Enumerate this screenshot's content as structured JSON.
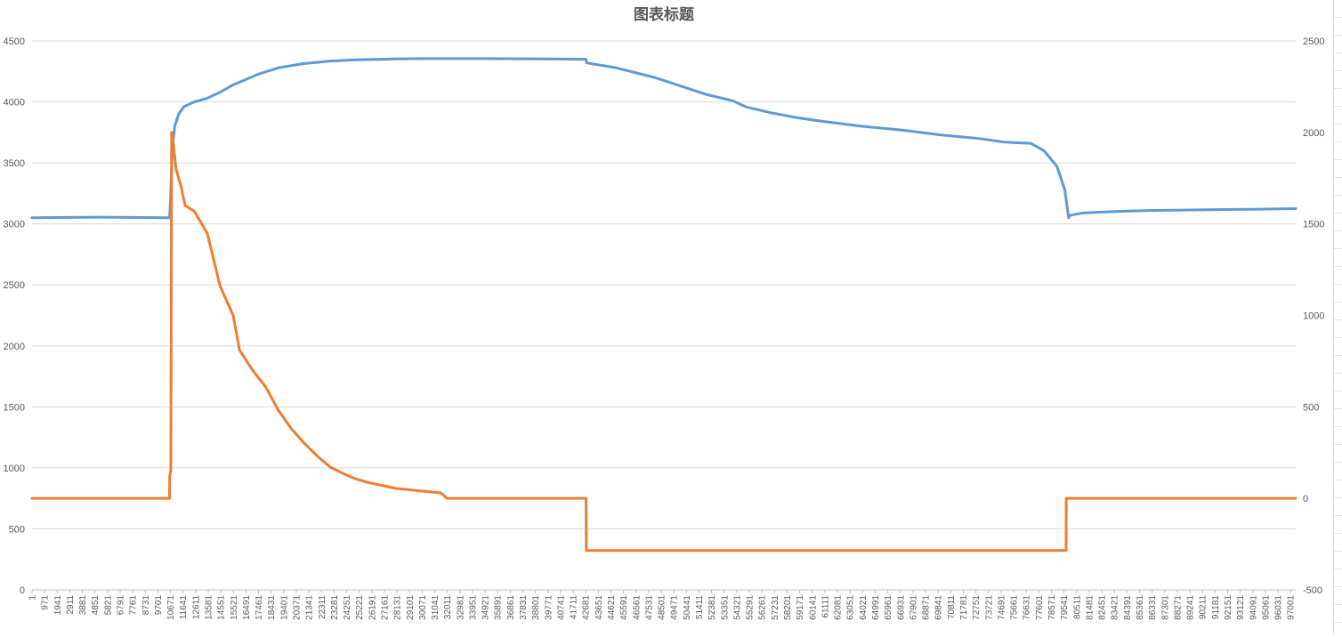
{
  "chart_data": {
    "type": "line",
    "title": "图表标题",
    "xlabel": "",
    "ylabel": "",
    "x_range": [
      1,
      97400
    ],
    "y_left_range": [
      0,
      4500
    ],
    "y_left_ticks": [
      "0",
      "500",
      "1000",
      "1500",
      "2000",
      "2500",
      "3000",
      "3500",
      "4000",
      "4500"
    ],
    "y_right_range": [
      -500,
      2500
    ],
    "y_right_ticks": [
      "-500",
      "0",
      "500",
      "1000",
      "1500",
      "2000",
      "2500"
    ],
    "x_tick_labels": [
      "1",
      "971",
      "1941",
      "2911",
      "3881",
      "4851",
      "5821",
      "6791",
      "7761",
      "8731",
      "9701",
      "10671",
      "11641",
      "12611",
      "13581",
      "14551",
      "15521",
      "16491",
      "17461",
      "18431",
      "19401",
      "20371",
      "21341",
      "22311",
      "23281",
      "24251",
      "25221",
      "26191",
      "27161",
      "28131",
      "29101",
      "30071",
      "31041",
      "32011",
      "32981",
      "33951",
      "34921",
      "35891",
      "36861",
      "37831",
      "38801",
      "39771",
      "40741",
      "41711",
      "42681",
      "43651",
      "44621",
      "45591",
      "46561",
      "47531",
      "48501",
      "49471",
      "50441",
      "51411",
      "52381",
      "53351",
      "54321",
      "55291",
      "56261",
      "57231",
      "58201",
      "59171",
      "60141",
      "61111",
      "62081",
      "63051",
      "64021",
      "64991",
      "65961",
      "66931",
      "67901",
      "68871",
      "69841",
      "70811",
      "71781",
      "72751",
      "73721",
      "74691",
      "75661",
      "76631",
      "77601",
      "78571",
      "79541",
      "80511",
      "81481",
      "82451",
      "83421",
      "84391",
      "85361",
      "86331",
      "87301",
      "88271",
      "89241",
      "90211",
      "91181",
      "92151",
      "93121",
      "94091",
      "95061",
      "96031",
      "97001"
    ],
    "grid": true,
    "legend": "none",
    "series": [
      {
        "axis": "left",
        "color": "#5b9bd5",
        "points": [
          [
            1,
            3050
          ],
          [
            5000,
            3055
          ],
          [
            10600,
            3050
          ],
          [
            10680,
            3200
          ],
          [
            10800,
            3600
          ],
          [
            11000,
            3800
          ],
          [
            11300,
            3900
          ],
          [
            11700,
            3960
          ],
          [
            12500,
            4000
          ],
          [
            13500,
            4030
          ],
          [
            14500,
            4080
          ],
          [
            15500,
            4140
          ],
          [
            16400,
            4180
          ],
          [
            17500,
            4230
          ],
          [
            19000,
            4280
          ],
          [
            21000,
            4315
          ],
          [
            23000,
            4335
          ],
          [
            25000,
            4345
          ],
          [
            28000,
            4352
          ],
          [
            30000,
            4355
          ],
          [
            35000,
            4355
          ],
          [
            42700,
            4350
          ],
          [
            42750,
            4320
          ],
          [
            45000,
            4280
          ],
          [
            48000,
            4200
          ],
          [
            50000,
            4130
          ],
          [
            52000,
            4060
          ],
          [
            54000,
            4010
          ],
          [
            55000,
            3960
          ],
          [
            57000,
            3910
          ],
          [
            59000,
            3870
          ],
          [
            61000,
            3840
          ],
          [
            64000,
            3800
          ],
          [
            67000,
            3770
          ],
          [
            70000,
            3730
          ],
          [
            73000,
            3700
          ],
          [
            75000,
            3670
          ],
          [
            77000,
            3660
          ],
          [
            78000,
            3600
          ],
          [
            79000,
            3470
          ],
          [
            79600,
            3280
          ],
          [
            79900,
            3050
          ],
          [
            80000,
            3070
          ],
          [
            81000,
            3090
          ],
          [
            83000,
            3100
          ],
          [
            86000,
            3110
          ],
          [
            90000,
            3115
          ],
          [
            94000,
            3120
          ],
          [
            97400,
            3125
          ]
        ]
      },
      {
        "axis": "right",
        "color": "#ed7d31",
        "points": [
          [
            1,
            0
          ],
          [
            10600,
            0
          ],
          [
            10610,
            120
          ],
          [
            10700,
            150
          ],
          [
            10760,
            2000
          ],
          [
            10850,
            1960
          ],
          [
            11100,
            1800
          ],
          [
            11300,
            1750
          ],
          [
            11500,
            1700
          ],
          [
            11800,
            1600
          ],
          [
            12500,
            1570
          ],
          [
            13500,
            1450
          ],
          [
            14500,
            1160
          ],
          [
            15500,
            1000
          ],
          [
            16000,
            810
          ],
          [
            17000,
            700
          ],
          [
            18000,
            610
          ],
          [
            19000,
            480
          ],
          [
            20000,
            380
          ],
          [
            21000,
            300
          ],
          [
            22000,
            230
          ],
          [
            23000,
            170
          ],
          [
            24000,
            135
          ],
          [
            25000,
            105
          ],
          [
            26000,
            85
          ],
          [
            27000,
            70
          ],
          [
            28000,
            55
          ],
          [
            30000,
            40
          ],
          [
            31500,
            30
          ],
          [
            32000,
            0
          ],
          [
            42700,
            0
          ],
          [
            42720,
            -285
          ],
          [
            79700,
            -285
          ],
          [
            79710,
            0
          ],
          [
            97400,
            0
          ]
        ]
      }
    ]
  }
}
